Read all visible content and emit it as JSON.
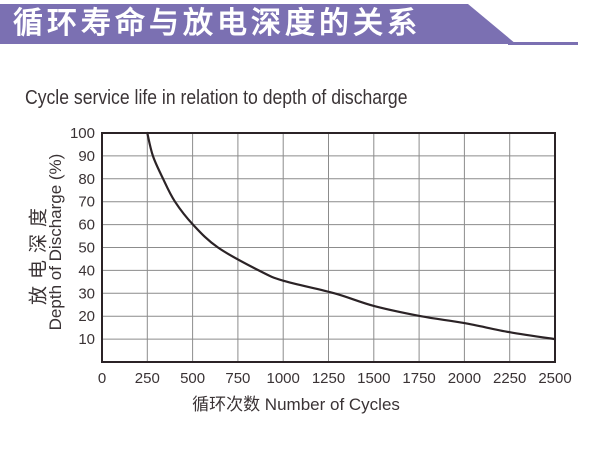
{
  "header": {
    "banner_title": "循环寿命与放电深度的关系"
  },
  "chart_title": "Cycle service life in relation to depth of discharge",
  "chart_data": {
    "type": "line",
    "title": "Cycle service life in relation to depth of discharge",
    "xlabel": "循环次数 Number of Cycles",
    "ylabel_zh": "放电深度",
    "ylabel_en": "Depth of Discharge (%)",
    "xlim": [
      0,
      2500
    ],
    "ylim": [
      0,
      100
    ],
    "x_ticks": [
      0,
      250,
      500,
      750,
      1000,
      1250,
      1500,
      1750,
      2000,
      2250,
      2500
    ],
    "y_ticks": [
      100,
      90,
      80,
      70,
      60,
      50,
      40,
      30,
      20,
      10
    ],
    "grid": true,
    "legend_position": "none",
    "series": [
      {
        "name": "depth-of-discharge-vs-cycles",
        "x": [
          250,
          281,
          337,
          403,
          502,
          640,
          865,
          1000,
          1283,
          1500,
          1760,
          2000,
          2250,
          2500
        ],
        "y": [
          100,
          90,
          80,
          70,
          60,
          50,
          40,
          35.5,
          30,
          24.5,
          20,
          17,
          13,
          10
        ]
      }
    ]
  },
  "colors": {
    "banner": "#7b70b2",
    "text": "#3a3335",
    "grid": "#8c8c8c",
    "line": "#2b2326"
  }
}
